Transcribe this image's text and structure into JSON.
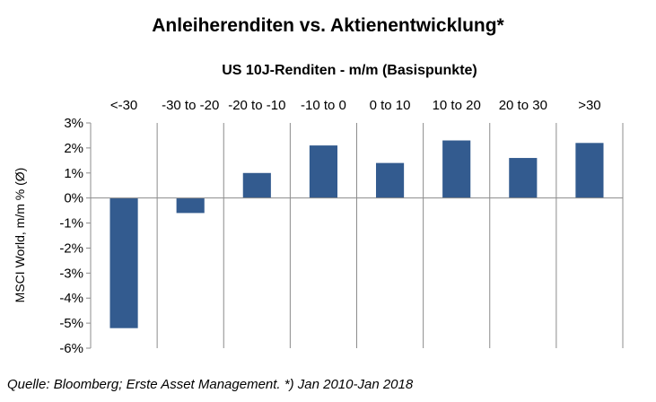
{
  "chart_data": {
    "type": "bar",
    "title": "Anleiherenditen  vs. Aktienentwicklung*",
    "subtitle": "US 10J-Renditen - m/m (Basispunkte)",
    "xlabel": "US 10J-Renditen - m/m (Basispunkte)",
    "ylabel": "MSCI World, m/m % (Ø)",
    "categories": [
      "<-30",
      "-30 to -20",
      "-20 to -10",
      "-10 to 0",
      "0 to 10",
      "10 to 20",
      "20 to 30",
      ">30"
    ],
    "values": [
      -5.2,
      -0.6,
      1.0,
      2.1,
      1.4,
      2.3,
      1.6,
      2.2
    ],
    "ylim": [
      -6,
      3
    ],
    "yticks": [
      3,
      2,
      1,
      0,
      -1,
      -2,
      -3,
      -4,
      -5,
      -6
    ],
    "ytick_labels": [
      "3%",
      "2%",
      "1%",
      "0%",
      "-1%",
      "-2%",
      "-3%",
      "-4%",
      "-5%",
      "-6%"
    ],
    "x_tick_position": "top",
    "grid": "vertical category separators",
    "legend": "none",
    "bar_color": "#335B8F"
  },
  "source": "Quelle: Bloomberg; Erste Asset Management. *) Jan 2010-Jan 2018"
}
